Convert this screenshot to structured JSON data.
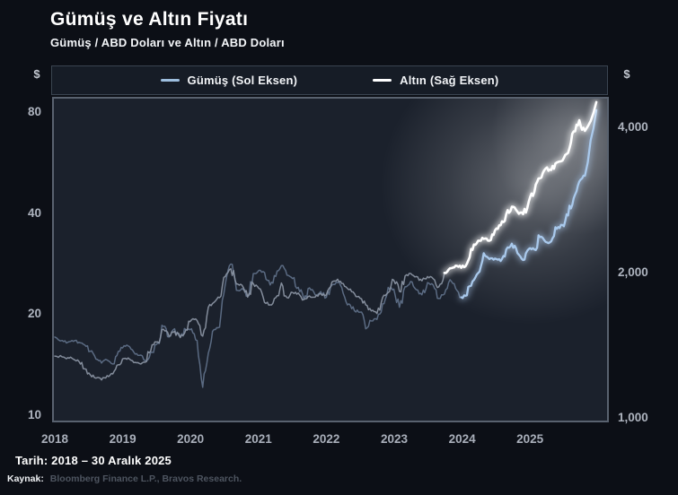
{
  "header": {
    "title": "Gümüş ve Altın Fiyatı",
    "subtitle": "Gümüş / ABD Doları ve Altın / ABD Doları"
  },
  "legend": {
    "silver_label": "Gümüş (Sol Eksen)",
    "gold_label": "Altın (Sağ Eksen)"
  },
  "footer": {
    "date_label": "Tarih: 2018 – 30 Aralık 2025",
    "source_label": "Kaynak:",
    "source_text": "Bloomberg Finance L.P., Bravos Research."
  },
  "colors": {
    "background": "#0c0f16",
    "plot_background": "#1b212c",
    "plot_border": "#59626f",
    "silver_bright": "#a9c9ec",
    "silver_dim": "#5f7088",
    "gold_bright": "#ffffff",
    "gold_dim": "#8a93a2",
    "tick_text": "#aeb4bf",
    "glow": "#ffffff"
  },
  "chart_data": {
    "type": "line",
    "title": "Gümüş ve Altın Fiyatı",
    "subtitle": "Gümüş / ABD Doları ve Altın / ABD Doları",
    "x_ticks": [
      "2018",
      "2019",
      "2020",
      "2021",
      "2022",
      "2023",
      "2024",
      "2025"
    ],
    "x_range": [
      "2018-01",
      "2025-12-30"
    ],
    "grid": false,
    "legend_position": "top",
    "left_axis": {
      "symbol": "$",
      "scale": "log",
      "tick_labels": [
        "80",
        "40",
        "20",
        "10"
      ],
      "tick_values": [
        80,
        40,
        20,
        10
      ],
      "range": [
        10,
        90
      ]
    },
    "right_axis": {
      "symbol": "$",
      "scale": "log",
      "tick_labels": [
        "4,000",
        "2,000",
        "1,000"
      ],
      "tick_values": [
        4000,
        2000,
        1000
      ],
      "range": [
        950,
        4700
      ]
    },
    "series": [
      {
        "name": "Gümüş (Sol Eksen)",
        "axis": "left",
        "unit": "USD",
        "interval": "monthly",
        "start": "2018-01",
        "highlight_start_index": 72,
        "values": [
          17.0,
          16.6,
          16.4,
          16.5,
          16.4,
          16.1,
          15.4,
          14.6,
          14.2,
          14.5,
          14.1,
          15.4,
          16.0,
          15.9,
          15.1,
          15.0,
          14.4,
          15.3,
          16.3,
          18.3,
          17.0,
          18.0,
          17.0,
          17.9,
          18.0,
          16.6,
          12.0,
          15.2,
          17.9,
          18.2,
          24.4,
          28.2,
          23.5,
          23.8,
          22.6,
          26.4,
          27.0,
          26.6,
          24.4,
          25.9,
          27.9,
          26.1,
          25.5,
          24.0,
          22.1,
          23.9,
          22.8,
          23.3,
          22.4,
          24.4,
          24.8,
          23.0,
          21.4,
          20.4,
          20.2,
          18.0,
          19.0,
          19.2,
          21.4,
          24.0,
          23.7,
          20.9,
          24.1,
          25.0,
          23.6,
          22.8,
          24.8,
          24.4,
          22.2,
          22.9,
          25.3,
          23.8,
          22.4,
          22.7,
          25.0,
          26.5,
          30.4,
          29.2,
          29.3,
          28.8,
          31.2,
          32.5,
          30.4,
          29.0,
          31.3,
          31.2,
          34.0,
          32.9,
          33.0,
          36.0,
          37.0,
          39.5,
          44.5,
          50.0,
          52.0,
          82.0
        ]
      },
      {
        "name": "Altın (Sağ Eksen)",
        "axis": "right",
        "unit": "USD",
        "interval": "monthly",
        "start": "2018-01",
        "highlight_start_index": 69,
        "values": [
          1335,
          1330,
          1325,
          1315,
          1300,
          1255,
          1220,
          1200,
          1190,
          1215,
          1225,
          1280,
          1320,
          1315,
          1295,
          1285,
          1300,
          1410,
          1430,
          1520,
          1470,
          1505,
          1460,
          1515,
          1590,
          1585,
          1470,
          1690,
          1730,
          1770,
          1960,
          2035,
          1890,
          1880,
          1775,
          1895,
          1850,
          1730,
          1710,
          1770,
          1900,
          1770,
          1815,
          1810,
          1755,
          1785,
          1775,
          1805,
          1795,
          1910,
          1935,
          1895,
          1840,
          1805,
          1765,
          1710,
          1660,
          1640,
          1770,
          1815,
          1925,
          1825,
          1965,
          1990,
          1960,
          1920,
          1960,
          1940,
          1865,
          1995,
          2040,
          2065,
          2045,
          2085,
          2230,
          2330,
          2350,
          2330,
          2450,
          2510,
          2650,
          2745,
          2680,
          2650,
          2812,
          2950,
          3150,
          3300,
          3280,
          3400,
          3430,
          3560,
          3950,
          4170,
          3960,
          4550
        ]
      }
    ],
    "annotations": {
      "date_range": "2018 – 30 Aralık 2025",
      "source": "Bloomberg Finance L.P., Bravos Research."
    }
  }
}
